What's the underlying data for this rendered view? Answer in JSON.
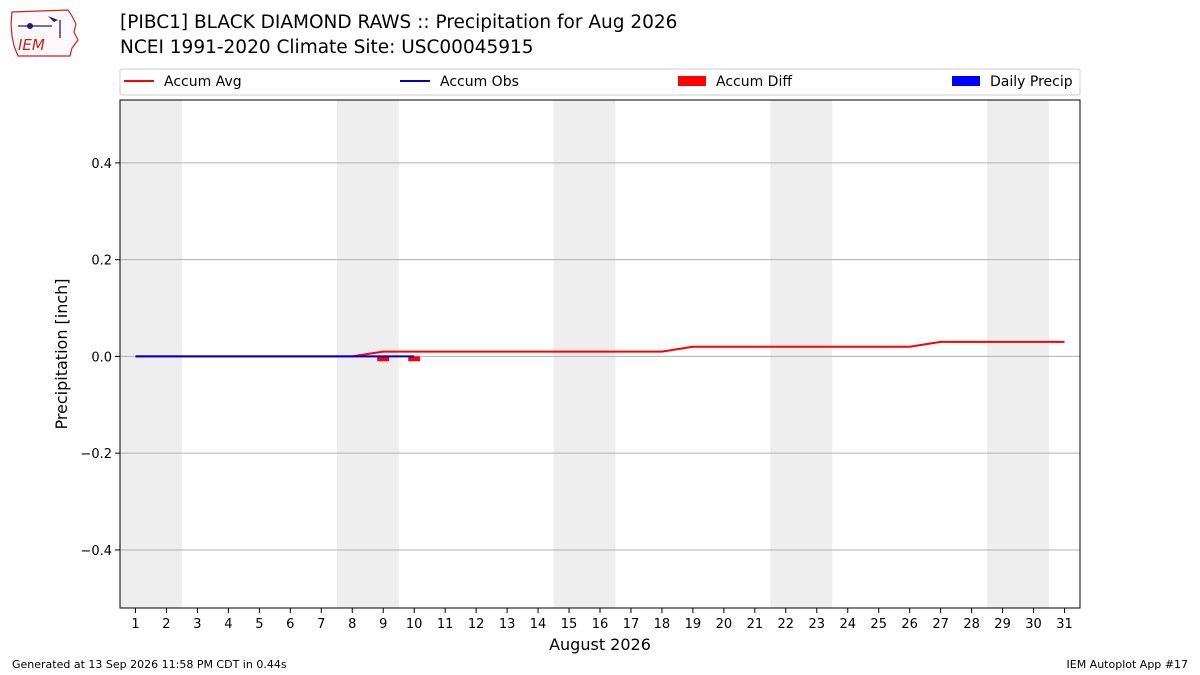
{
  "header": {
    "title_line1": "[PIBC1] BLACK DIAMOND RAWS :: Precipitation for Aug 2026",
    "title_line2": "NCEI 1991-2020 Climate Site: USC00045915",
    "logo_text": "IEM"
  },
  "footer": {
    "generated": "Generated at 13 Sep 2026 11:58 PM CDT in 0.44s",
    "app": "IEM Autoplot App #17"
  },
  "colors": {
    "avg": "#ff0000",
    "obs": "#0000cc",
    "diff": "#ff0000",
    "daily": "#0000ff",
    "weekend_shade": "#eeeeee",
    "grid": "#b0b0b0"
  },
  "chart_data": {
    "type": "line",
    "xlabel": "August 2026",
    "ylabel": "Precipitation [inch]",
    "x": [
      1,
      2,
      3,
      4,
      5,
      6,
      7,
      8,
      9,
      10,
      11,
      12,
      13,
      14,
      15,
      16,
      17,
      18,
      19,
      20,
      21,
      22,
      23,
      24,
      25,
      26,
      27,
      28,
      29,
      30,
      31
    ],
    "xlim": [
      0.5,
      31.5
    ],
    "ylim": [
      -0.52,
      0.53
    ],
    "yticks": [
      0.4,
      0.2,
      0.0,
      -0.2,
      -0.4
    ],
    "ytick_labels": [
      "0.4",
      "0.2",
      "0.0",
      "−0.2",
      "−0.4"
    ],
    "grid": "horizontal",
    "legend_position": "top",
    "shaded_days": [
      [
        1,
        2
      ],
      [
        8,
        9
      ],
      [
        15,
        16
      ],
      [
        22,
        23
      ],
      [
        29,
        30
      ]
    ],
    "series": [
      {
        "name": "Accum Avg",
        "kind": "line",
        "x": [
          1,
          2,
          3,
          4,
          5,
          6,
          7,
          8,
          9,
          10,
          11,
          12,
          13,
          14,
          15,
          16,
          17,
          18,
          19,
          20,
          21,
          22,
          23,
          24,
          25,
          26,
          27,
          28,
          29,
          30,
          31
        ],
        "values": [
          0,
          0,
          0,
          0,
          0,
          0,
          0,
          0,
          0.01,
          0.01,
          0.01,
          0.01,
          0.01,
          0.01,
          0.01,
          0.01,
          0.01,
          0.01,
          0.02,
          0.02,
          0.02,
          0.02,
          0.02,
          0.02,
          0.02,
          0.02,
          0.03,
          0.03,
          0.03,
          0.03,
          0.03
        ]
      },
      {
        "name": "Accum Obs",
        "kind": "line",
        "x": [
          1,
          2,
          3,
          4,
          5,
          6,
          7,
          8,
          9,
          10
        ],
        "values": [
          0,
          0,
          0,
          0,
          0,
          0,
          0,
          0,
          0,
          0
        ]
      },
      {
        "name": "Accum Diff",
        "kind": "bar",
        "x": [
          9,
          10
        ],
        "values": [
          -0.01,
          -0.01
        ]
      },
      {
        "name": "Daily Precip",
        "kind": "bar",
        "x": [],
        "values": []
      }
    ]
  }
}
